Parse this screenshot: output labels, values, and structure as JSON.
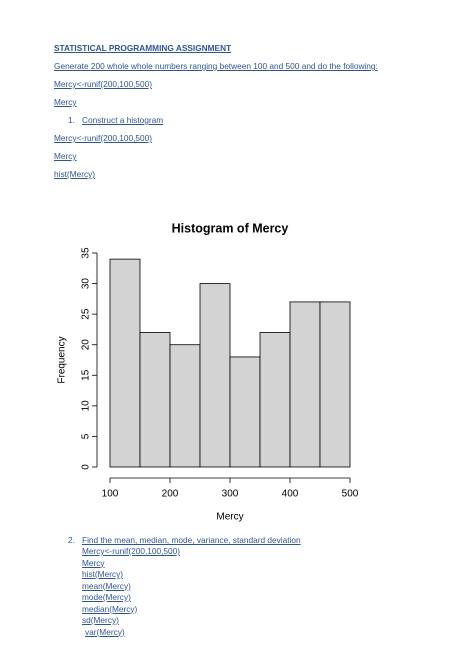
{
  "document": {
    "title": "STATISTICAL PROGRAMMING ASSIGNMENT",
    "paragraphs": [
      "Generate 200 whole whole numbers ranging between 100 and 500 and do the following:",
      "Mercy<-runif(200,100,500)",
      "Mercy"
    ],
    "items": [
      {
        "number": "1.",
        "text": "Construct a histogram",
        "code": [
          "Mercy<-runif(200,100,500)",
          "Mercy",
          "hist(Mercy)"
        ]
      },
      {
        "number": "2.",
        "text": "Find the mean, median, mode, variance, standard deviation",
        "code": [
          "Mercy<-runif(200,100,500)",
          "Mercy",
          "hist(Mercy)",
          "mean(Mercy)",
          "mode(Mercy)",
          "median(Mercy)",
          "sd(Mercy)",
          "var(Mercy)"
        ]
      }
    ]
  },
  "chart_data": {
    "type": "histogram",
    "title": "Histogram of Mercy",
    "x_label": "Mercy",
    "y_label": "Frequency",
    "bins": [
      100,
      150,
      200,
      250,
      300,
      350,
      400,
      450,
      500
    ],
    "values": [
      34,
      22,
      20,
      30,
      18,
      22,
      27,
      27
    ],
    "color": "#d3d3d3",
    "xlim": [
      100,
      500
    ],
    "xticks": [
      100,
      200,
      300,
      400,
      500
    ],
    "ylim": [
      0,
      35
    ],
    "yticks": [
      0,
      5,
      10,
      15,
      20,
      25,
      30,
      35
    ]
  }
}
